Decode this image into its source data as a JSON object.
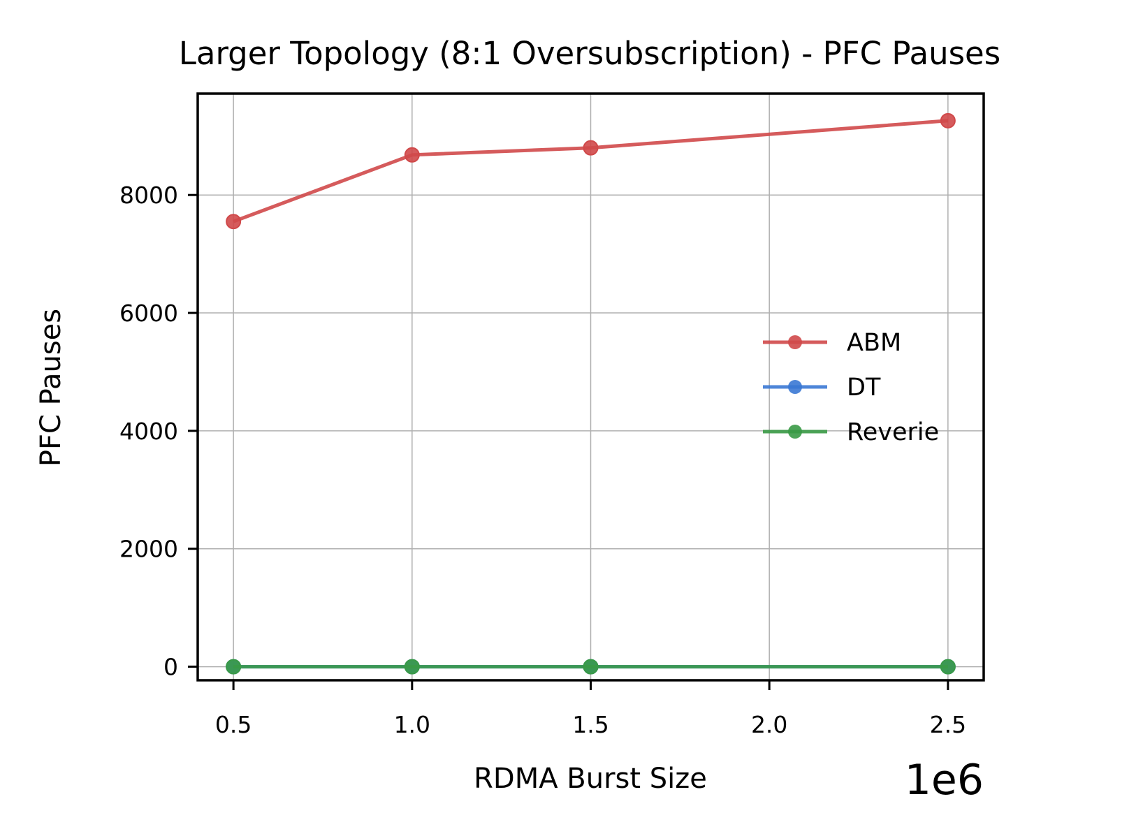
{
  "chart_data": {
    "type": "line",
    "title": "Larger Topology (8:1 Oversubscription) - PFC Pauses",
    "xlabel": "RDMA Burst Size",
    "ylabel": "PFC Pauses",
    "x_offset_label": "1e6",
    "x": [
      500000,
      1000000,
      1500000,
      2500000
    ],
    "xlim": [
      400000,
      2600000
    ],
    "ylim": [
      -230,
      9720
    ],
    "xticks": [
      500000,
      1000000,
      1500000,
      2000000,
      2500000
    ],
    "xtick_labels": [
      "0.5",
      "1.0",
      "1.5",
      "2.0",
      "2.5"
    ],
    "yticks": [
      0,
      2000,
      4000,
      6000,
      8000
    ],
    "ytick_labels": [
      "0",
      "2000",
      "4000",
      "6000",
      "8000"
    ],
    "grid": true,
    "legend_position": "center-right",
    "series": [
      {
        "name": "ABM",
        "color": "#d0494a",
        "values": [
          7550,
          8680,
          8800,
          9260
        ]
      },
      {
        "name": "DT",
        "color": "#3a78d4",
        "values": [
          0,
          0,
          0,
          0
        ]
      },
      {
        "name": "Reverie",
        "color": "#3a9a46",
        "values": [
          0,
          0,
          0,
          0
        ]
      }
    ]
  }
}
